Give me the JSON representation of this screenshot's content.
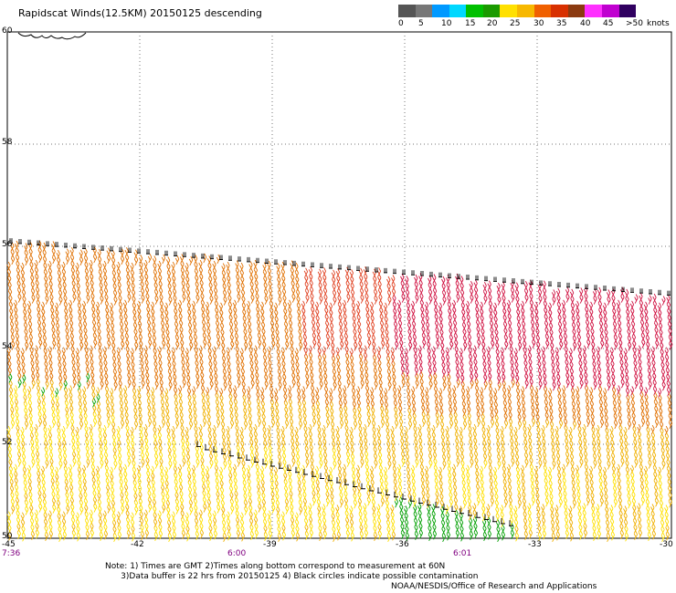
{
  "header": {
    "title": "Rapidscat Winds(12.5KM) 20150125 descending"
  },
  "legend": {
    "colors": [
      "#555555",
      "#777777",
      "#0099ff",
      "#00d8ff",
      "#00c000",
      "#1a9a00",
      "#ffe000",
      "#f7b800",
      "#f06000",
      "#d83000",
      "#8b3a10",
      "#ff30ff",
      "#c000d0",
      "#300060"
    ],
    "labels": [
      "0",
      "5",
      "10",
      "15",
      "20",
      "25",
      "30",
      "35",
      "40",
      "45",
      ">50"
    ],
    "units": "knots"
  },
  "map": {
    "lat_labels": [
      "60",
      "58",
      "56",
      "54",
      "52",
      "50"
    ],
    "lon_labels": [
      "-45",
      "-42",
      "-39",
      "-36",
      "-33",
      "-30"
    ],
    "time_labels": [
      "7:36",
      "6:00",
      "6:01"
    ],
    "time_label_color": "#800080",
    "barb_colors": {
      "light": "#ffe000",
      "gold": "#f0b000",
      "orange": "#e07000",
      "red_orange": "#e04020",
      "crimson": "#d01040",
      "green": "#00a000",
      "black": "#000000"
    }
  },
  "footer": {
    "note_line1": "Note: 1) Times are GMT 2)Times along bottom correspond to measurement at 60N",
    "note_line2": "3)Data buffer is 22 hrs from 20150125 4) Black circles indicate possible contamination",
    "credit": "NOAA/NESDIS/Office of Research and Applications"
  }
}
